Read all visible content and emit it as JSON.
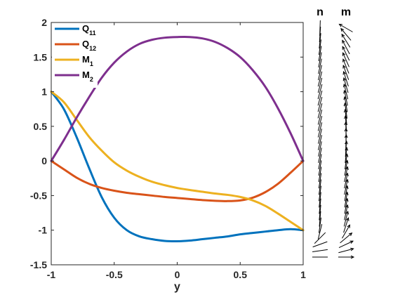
{
  "chart_data": {
    "type": "line",
    "xlabel": "y",
    "ylabel": "",
    "xlim": [
      -1,
      1
    ],
    "ylim": [
      -1.5,
      2
    ],
    "x_ticks": [
      "-1",
      "-0.5",
      "0",
      "0.5",
      "1"
    ],
    "y_ticks": [
      "-1.5",
      "-1",
      "-0.5",
      "0",
      "0.5",
      "1",
      "1.5",
      "2"
    ],
    "legend_position": "top-left",
    "series": [
      {
        "name": "Q",
        "subscript": "11",
        "color": "#0072BD",
        "x": [
          -1,
          -0.9,
          -0.8,
          -0.7,
          -0.6,
          -0.5,
          -0.4,
          -0.3,
          -0.2,
          -0.1,
          0,
          0.1,
          0.2,
          0.3,
          0.4,
          0.5,
          0.6,
          0.7,
          0.8,
          0.9,
          1
        ],
        "y": [
          1.0,
          0.75,
          0.35,
          -0.1,
          -0.52,
          -0.82,
          -1.0,
          -1.09,
          -1.13,
          -1.155,
          -1.16,
          -1.15,
          -1.13,
          -1.11,
          -1.09,
          -1.06,
          -1.04,
          -1.02,
          -1.0,
          -0.985,
          -1.0
        ]
      },
      {
        "name": "Q",
        "subscript": "12",
        "color": "#D95319",
        "x": [
          -1,
          -0.9,
          -0.8,
          -0.7,
          -0.6,
          -0.5,
          -0.4,
          -0.3,
          -0.2,
          -0.1,
          0,
          0.1,
          0.2,
          0.3,
          0.4,
          0.5,
          0.6,
          0.7,
          0.8,
          0.9,
          1
        ],
        "y": [
          0,
          -0.12,
          -0.24,
          -0.33,
          -0.39,
          -0.43,
          -0.46,
          -0.48,
          -0.5,
          -0.52,
          -0.535,
          -0.55,
          -0.565,
          -0.575,
          -0.58,
          -0.57,
          -0.53,
          -0.45,
          -0.33,
          -0.17,
          0
        ]
      },
      {
        "name": "M",
        "subscript": "1",
        "color": "#EDB120",
        "x": [
          -1,
          -0.9,
          -0.8,
          -0.7,
          -0.6,
          -0.5,
          -0.4,
          -0.3,
          -0.2,
          -0.1,
          0,
          0.1,
          0.2,
          0.3,
          0.4,
          0.5,
          0.6,
          0.7,
          0.8,
          0.9,
          1
        ],
        "y": [
          1.0,
          0.85,
          0.6,
          0.35,
          0.15,
          -0.02,
          -0.14,
          -0.23,
          -0.3,
          -0.35,
          -0.39,
          -0.42,
          -0.445,
          -0.47,
          -0.49,
          -0.52,
          -0.57,
          -0.65,
          -0.76,
          -0.88,
          -1.0
        ]
      },
      {
        "name": "M",
        "subscript": "2",
        "color": "#7E2F8E",
        "x": [
          -1,
          -0.9,
          -0.8,
          -0.7,
          -0.6,
          -0.5,
          -0.4,
          -0.3,
          -0.2,
          -0.1,
          0,
          0.1,
          0.2,
          0.3,
          0.4,
          0.5,
          0.6,
          0.7,
          0.8,
          0.9,
          1
        ],
        "y": [
          0,
          0.3,
          0.62,
          0.92,
          1.2,
          1.42,
          1.58,
          1.69,
          1.75,
          1.78,
          1.79,
          1.79,
          1.77,
          1.72,
          1.63,
          1.5,
          1.31,
          1.07,
          0.76,
          0.4,
          0
        ]
      }
    ],
    "directors": [
      {
        "title": "n",
        "glyph": "line",
        "angles": [
          88,
          86,
          84,
          82,
          80,
          79,
          78,
          77,
          76,
          76,
          75,
          75,
          75,
          75,
          76,
          76,
          76,
          77,
          77,
          78,
          78,
          79,
          80,
          80,
          81,
          82,
          82,
          83,
          84,
          84,
          85,
          82,
          76,
          45,
          20,
          8,
          0
        ]
      },
      {
        "title": "m",
        "glyph": "arrow",
        "angles": [
          150,
          130,
          122,
          118,
          116,
          114,
          112,
          110,
          108,
          106,
          104,
          102,
          100,
          98,
          96,
          94,
          92,
          90,
          88,
          86,
          84,
          82,
          80,
          78,
          78,
          78,
          80,
          80,
          80,
          78,
          76,
          72,
          60,
          40,
          25,
          15,
          0
        ]
      }
    ]
  }
}
